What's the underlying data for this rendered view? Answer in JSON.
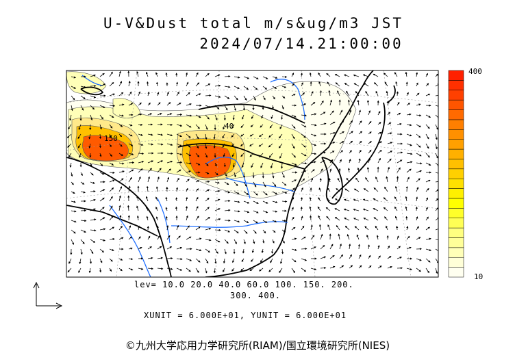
{
  "title": {
    "line1": "U-V&Dust total m/s&ug/m3 JST",
    "line2": "2024/07/14.21:00:00"
  },
  "contour_levels": {
    "row1": "lev= 10.0 20.0 40.0 60.0 100. 150. 200.",
    "row2": "300. 400."
  },
  "contour_labels": [
    "150",
    "40"
  ],
  "units_line": "XUNIT = 6.000E+01, YUNIT = 6.000E+01",
  "colorbar": {
    "max_label": "400",
    "min_label": "10",
    "colors": [
      "#fffff0",
      "#ffffd8",
      "#ffffb8",
      "#ffff99",
      "#ffff80",
      "#ffff55",
      "#ffff2a",
      "#ffff00",
      "#fff000",
      "#ffe000",
      "#ffd000",
      "#ffc000",
      "#ffb000",
      "#ffa000",
      "#ff9000",
      "#ff7f00",
      "#ff6a00",
      "#ff5500",
      "#ff4000",
      "#ff3000",
      "#ff2000"
    ]
  },
  "dust_colors": {
    "very_low": "#fffff0",
    "low": "#ffffb8",
    "medium": "#ffe98a",
    "high": "#ffc000",
    "very_high": "#ff5a00"
  },
  "copyright": "©九州大学応用力学研究所(RIAM)/国立環境研究所(NIES)"
}
